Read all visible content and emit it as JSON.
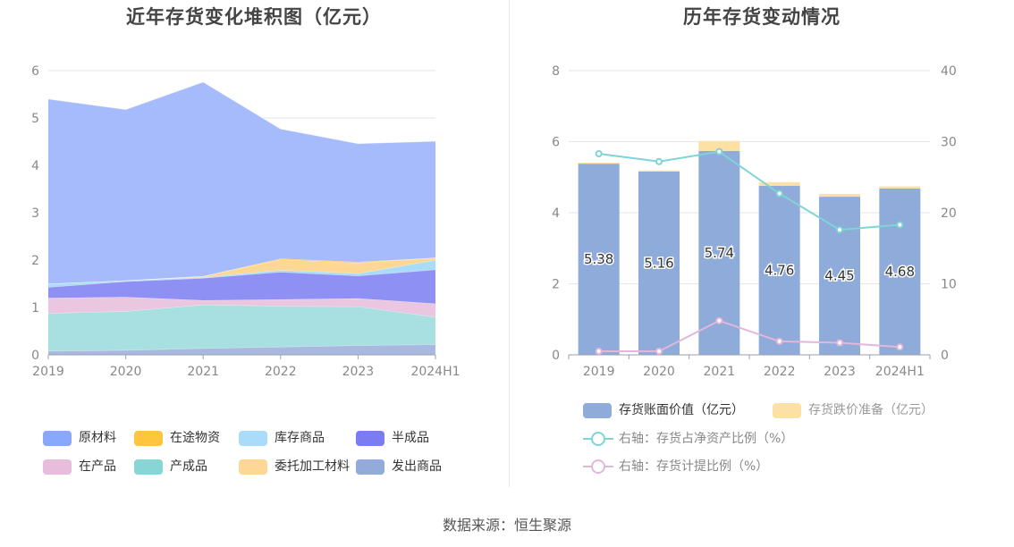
{
  "left_chart": {
    "title": "近年存货变化堆积图（亿元）",
    "legend": [
      "原材料",
      "在途物资",
      "库存商品",
      "半成品",
      "在产品",
      "产成品",
      "委托加工材料",
      "发出商品"
    ],
    "colors": {
      "原材料": "#a6bbfb",
      "在途物资": "#ffc53d",
      "库存商品": "#a9dcf9",
      "半成品": "#8f90f4",
      "在产品": "#eac6e0",
      "产成品": "#a8e0e1",
      "委托加工材料": "#fdd793",
      "发出商品": "#a8b8e0"
    },
    "legend_colors": {
      "原材料": "#8aa8fb",
      "在途物资": "#ffc53d",
      "库存商品": "#a9dcf9",
      "半成品": "#7b7cf2",
      "在产品": "#e7bddb",
      "产成品": "#86d6d6",
      "委托加工材料": "#fdd793",
      "发出商品": "#92abdb"
    }
  },
  "right_chart": {
    "title": "历年存货变动情况",
    "legend": {
      "bar1": "存货账面价值（亿元）",
      "bar2": "存货跌价准备（亿元）",
      "line1": "右轴：存货占净资产比例（%）",
      "line2": "右轴：存货计提比例（%）"
    },
    "colors": {
      "bar1": "#8eabd9",
      "bar2": "#fde0a4",
      "line1": "#7fd4d6",
      "line2": "#e3b6db"
    }
  },
  "source": "数据来源：恒生聚源",
  "chart_data": [
    {
      "type": "area",
      "stacked": true,
      "title": "近年存货变化堆积图（亿元）",
      "categories": [
        "2019",
        "2020",
        "2021",
        "2022",
        "2023",
        "2024H1"
      ],
      "ylim": [
        0,
        6
      ],
      "yticks": [
        0,
        1,
        2,
        3,
        4,
        5,
        6
      ],
      "grid": true,
      "legend_position": "bottom",
      "series": [
        {
          "name": "发出商品",
          "values": [
            0.08,
            0.1,
            0.14,
            0.17,
            0.2,
            0.22
          ]
        },
        {
          "name": "产成品",
          "values": [
            0.8,
            0.82,
            0.92,
            0.86,
            0.82,
            0.58
          ]
        },
        {
          "name": "在产品",
          "values": [
            0.32,
            0.3,
            0.09,
            0.14,
            0.17,
            0.28
          ]
        },
        {
          "name": "半成品",
          "values": [
            0.23,
            0.33,
            0.47,
            0.58,
            0.48,
            0.72
          ]
        },
        {
          "name": "库存商品",
          "values": [
            0.07,
            0.02,
            0.02,
            0.04,
            0.05,
            0.2
          ]
        },
        {
          "name": "委托加工材料",
          "values": [
            0.0,
            0.0,
            0.02,
            0.22,
            0.22,
            0.05
          ]
        },
        {
          "name": "在途物资",
          "values": [
            0.0,
            0.0,
            0.0,
            0.02,
            0.02,
            0.0
          ]
        },
        {
          "name": "原材料",
          "values": [
            3.9,
            3.61,
            4.1,
            2.74,
            2.5,
            2.46
          ]
        }
      ]
    },
    {
      "type": "bar",
      "stacked": true,
      "title": "历年存货变动情况",
      "categories": [
        "2019",
        "2020",
        "2021",
        "2022",
        "2023",
        "2024H1"
      ],
      "ylim": [
        0,
        8
      ],
      "yticks": [
        0,
        2,
        4,
        6,
        8
      ],
      "y2lim": [
        0,
        40
      ],
      "y2ticks": [
        0,
        10,
        20,
        30,
        40
      ],
      "grid": true,
      "legend_position": "bottom",
      "series": [
        {
          "name": "存货账面价值（亿元）",
          "axis": "left",
          "kind": "bar",
          "values": [
            5.38,
            5.16,
            5.74,
            4.76,
            4.45,
            4.68
          ],
          "labels": [
            "5.38",
            "5.16",
            "5.74",
            "4.76",
            "4.45",
            "4.68"
          ]
        },
        {
          "name": "存货跌价准备（亿元）",
          "axis": "left",
          "kind": "bar",
          "values": [
            0.03,
            0.03,
            0.28,
            0.1,
            0.08,
            0.06
          ]
        },
        {
          "name": "右轴：存货占净资产比例（%）",
          "axis": "right",
          "kind": "line",
          "values": [
            28.3,
            27.2,
            28.6,
            22.7,
            17.6,
            18.3
          ]
        },
        {
          "name": "右轴：存货计提比例（%）",
          "axis": "right",
          "kind": "line",
          "values": [
            0.5,
            0.5,
            4.8,
            1.9,
            1.7,
            1.1
          ]
        }
      ]
    }
  ]
}
